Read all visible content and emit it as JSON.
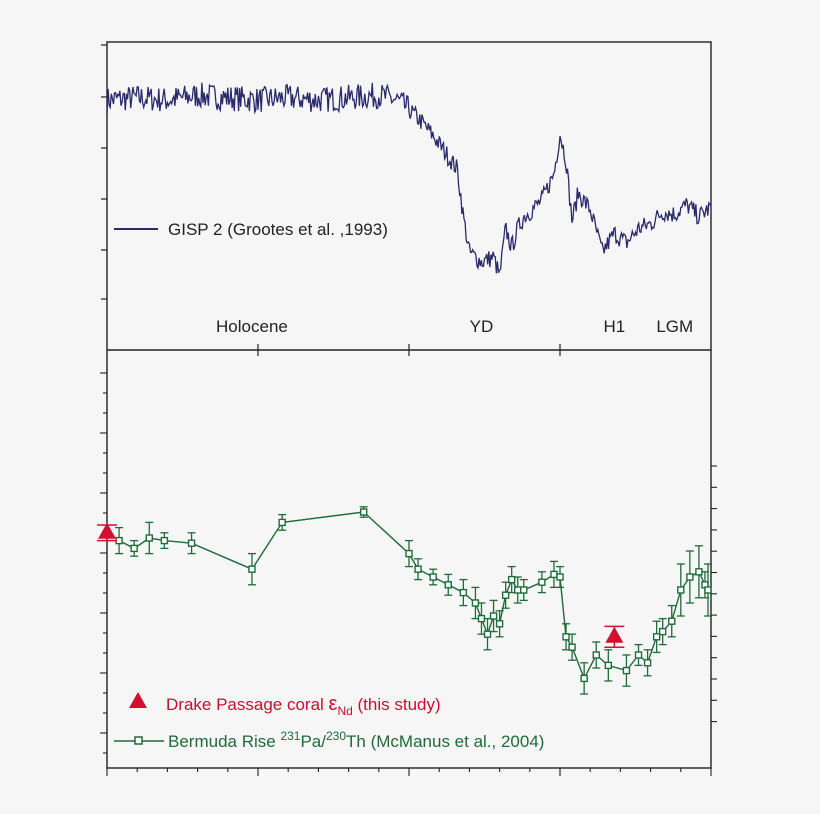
{
  "colors": {
    "gisp": "#2b2a6b",
    "bermuda": "#1f6b3a",
    "drake": "#d0102e",
    "frame": "#222222",
    "background": "#f6f6f6"
  },
  "chart_data": [
    {
      "type": "line",
      "xlim": [
        0,
        1
      ],
      "ylim": [
        0,
        1
      ],
      "legend": {
        "label": "GISP 2 (Grootes et al. ,1993)",
        "placement": "left"
      },
      "annotations": [
        {
          "text": "Holocene",
          "x": 0.24
        },
        {
          "text": "YD",
          "x": 0.62
        },
        {
          "text": "H1",
          "x": 0.84
        },
        {
          "text": "LGM",
          "x": 0.94
        }
      ],
      "series": [
        {
          "name": "GISP 2 (Grootes et al. ,1993)",
          "x": [
            0.0,
            0.05,
            0.1,
            0.15,
            0.2,
            0.25,
            0.3,
            0.35,
            0.4,
            0.45,
            0.48,
            0.5,
            0.52,
            0.54,
            0.56,
            0.58,
            0.59,
            0.6,
            0.62,
            0.64,
            0.65,
            0.66,
            0.67,
            0.68,
            0.69,
            0.7,
            0.72,
            0.74,
            0.75,
            0.76,
            0.77,
            0.78,
            0.8,
            0.82,
            0.84,
            0.86,
            0.88,
            0.9,
            0.92,
            0.94,
            0.96,
            0.98,
            1.0
          ],
          "y": [
            0.84,
            0.85,
            0.84,
            0.86,
            0.85,
            0.84,
            0.85,
            0.84,
            0.85,
            0.86,
            0.84,
            0.8,
            0.75,
            0.69,
            0.62,
            0.55,
            0.35,
            0.2,
            0.16,
            0.18,
            0.1,
            0.3,
            0.22,
            0.3,
            0.35,
            0.37,
            0.42,
            0.53,
            0.7,
            0.59,
            0.33,
            0.45,
            0.38,
            0.2,
            0.28,
            0.24,
            0.3,
            0.32,
            0.37,
            0.36,
            0.4,
            0.35,
            0.39
          ]
        }
      ]
    },
    {
      "type": "line",
      "xlim": [
        0,
        1
      ],
      "ylim": [
        0,
        1
      ],
      "legend_entries": [
        {
          "label": "Drake Passage coral εNd (this study)",
          "marker": "triangle",
          "color": "#d0102e"
        },
        {
          "label": "Bermuda Rise 231Pa/230Th (McManus et al., 2004)",
          "marker": "square",
          "color": "#1f6b3a"
        }
      ],
      "legend_rich": {
        "drake": {
          "pre": "Drake Passage coral ",
          "sym": "ε",
          "sub": "Nd",
          "post": " (this study)"
        },
        "bermuda": {
          "pre": "Bermuda Rise ",
          "sup1": "231",
          "mid": "Pa/",
          "sup2": "230",
          "post": "Th (McManus et al., 2004)"
        }
      },
      "series": [
        {
          "name": "Bermuda Rise 231Pa/230Th (McManus et al., 2004)",
          "x": [
            0.02,
            0.045,
            0.07,
            0.095,
            0.14,
            0.24,
            0.29,
            0.425,
            0.5,
            0.515,
            0.54,
            0.565,
            0.59,
            0.61,
            0.62,
            0.63,
            0.64,
            0.65,
            0.66,
            0.67,
            0.68,
            0.69,
            0.72,
            0.74,
            0.75,
            0.76,
            0.77,
            0.79,
            0.81,
            0.83,
            0.86,
            0.88,
            0.895,
            0.91,
            0.92,
            0.935,
            0.95,
            0.965,
            0.98,
            0.99,
            0.995
          ],
          "y": [
            0.69,
            0.66,
            0.7,
            0.69,
            0.68,
            0.58,
            0.76,
            0.8,
            0.64,
            0.58,
            0.55,
            0.52,
            0.49,
            0.45,
            0.39,
            0.33,
            0.4,
            0.37,
            0.48,
            0.54,
            0.5,
            0.5,
            0.53,
            0.56,
            0.55,
            0.32,
            0.28,
            0.16,
            0.25,
            0.21,
            0.19,
            0.25,
            0.22,
            0.32,
            0.34,
            0.38,
            0.5,
            0.55,
            0.57,
            0.52,
            0.5
          ],
          "err": [
            0.05,
            0.03,
            0.06,
            0.03,
            0.04,
            0.06,
            0.03,
            0.02,
            0.05,
            0.04,
            0.03,
            0.04,
            0.05,
            0.06,
            0.06,
            0.06,
            0.06,
            0.05,
            0.05,
            0.05,
            0.05,
            0.04,
            0.04,
            0.05,
            0.04,
            0.05,
            0.05,
            0.06,
            0.05,
            0.06,
            0.06,
            0.04,
            0.05,
            0.06,
            0.05,
            0.06,
            0.1,
            0.1,
            0.1,
            0.05,
            0.1
          ]
        },
        {
          "name": "Drake Passage coral εNd (this study)",
          "x": [
            0.0,
            0.84
          ],
          "y": [
            0.72,
            0.32
          ],
          "err": [
            0.03,
            0.04
          ]
        }
      ]
    }
  ]
}
